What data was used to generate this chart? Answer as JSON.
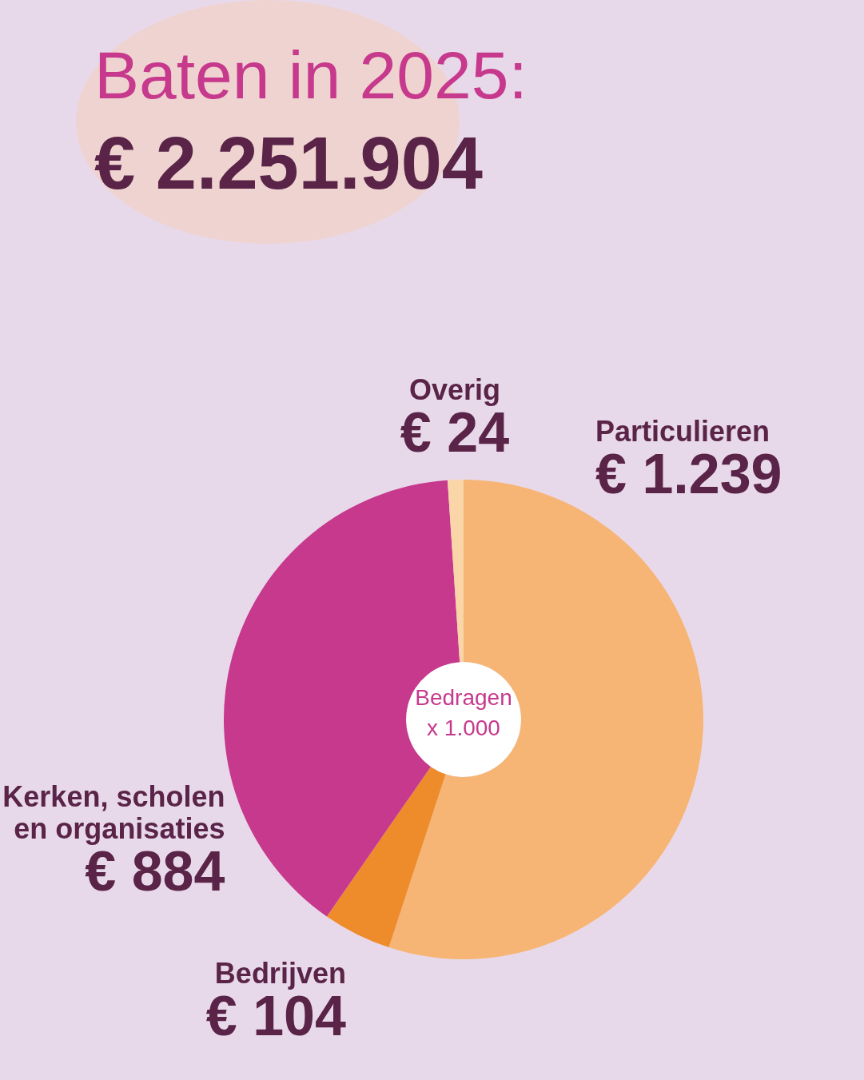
{
  "chart_data": {
    "type": "donut",
    "title": "Baten in 2025:",
    "subtitle": "€ 2.251.904",
    "categories": [
      "Particulieren",
      "Bedrijven",
      "Kerken, scholen en organisaties",
      "Overig"
    ],
    "values": [
      1239,
      104,
      884,
      24
    ],
    "value_labels": [
      "€ 1.239",
      "€ 104",
      "€ 884",
      "€ 24"
    ],
    "colors": [
      "#f6b574",
      "#ee8c2c",
      "#c6398c",
      "#f9d5a8"
    ],
    "annotations": [
      "Bedragen x 1.000"
    ]
  }
}
